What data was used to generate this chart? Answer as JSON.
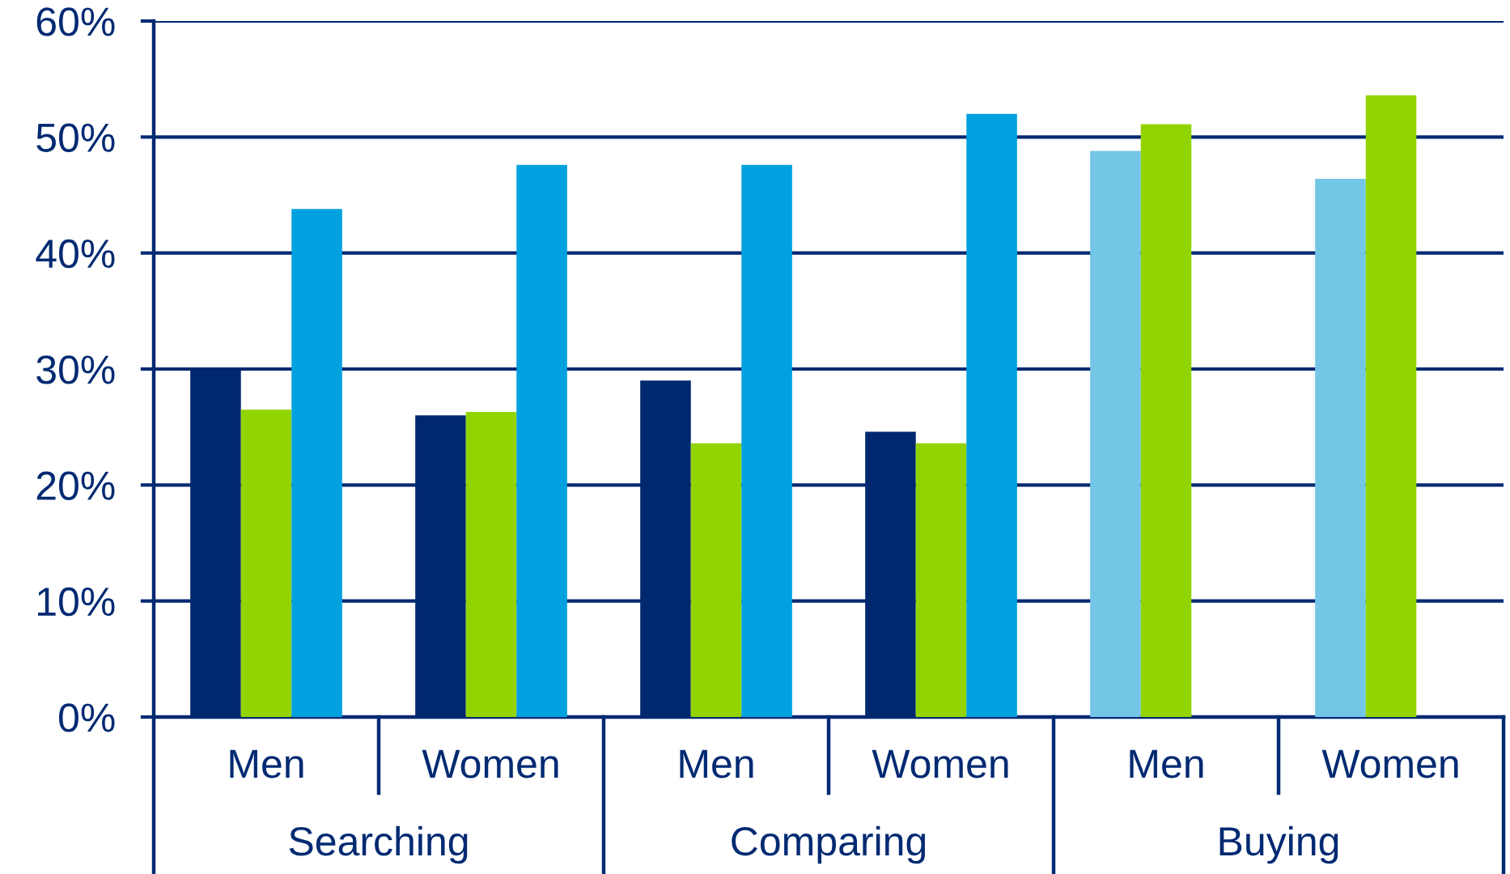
{
  "chart_data": {
    "type": "bar",
    "categories": [
      "Men",
      "Women",
      "Men",
      "Women",
      "Men",
      "Women"
    ],
    "series": [
      {
        "colors": [
          "#00286f",
          "#00286f",
          "#00286f",
          "#00286f",
          "#74c6e6",
          "#74c6e6"
        ],
        "values": [
          30.0,
          26.0,
          29.0,
          24.6,
          48.8,
          46.4
        ]
      },
      {
        "color": "#92d400",
        "values": [
          26.5,
          26.3,
          23.6,
          23.6,
          51.1,
          53.6
        ]
      },
      {
        "color": "#00a1de",
        "values": [
          43.8,
          47.6,
          47.6,
          52.0,
          null,
          null
        ]
      }
    ],
    "ylim": [
      0,
      60
    ],
    "yticks": [
      {
        "value": 0,
        "label": "0%"
      },
      {
        "value": 10,
        "label": "10%"
      },
      {
        "value": 20,
        "label": "20%"
      },
      {
        "value": 30,
        "label": "30%"
      },
      {
        "value": 40,
        "label": "40%"
      },
      {
        "value": 50,
        "label": "50%"
      },
      {
        "value": 60,
        "label": "60%"
      }
    ],
    "grid": "y",
    "annotations": [
      "Searching",
      "Comparing",
      "Buying"
    ]
  }
}
